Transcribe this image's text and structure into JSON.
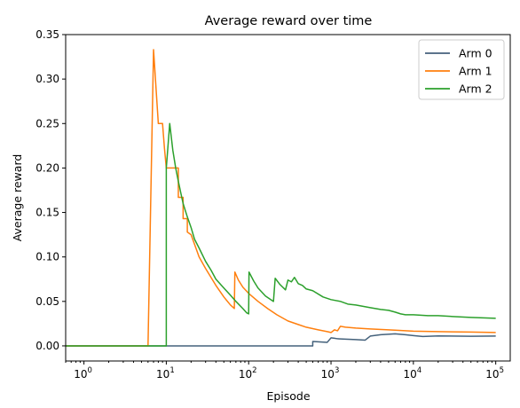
{
  "chart_data": {
    "type": "line",
    "title": "Average reward over time",
    "xlabel": "Episode",
    "ylabel": "Average reward",
    "xscale": "log",
    "xlim": [
      0.6,
      150000
    ],
    "ylim": [
      -0.017,
      0.35
    ],
    "x_ticks": [
      {
        "base": "10",
        "exp": "0"
      },
      {
        "base": "10",
        "exp": "1"
      },
      {
        "base": "10",
        "exp": "2"
      },
      {
        "base": "10",
        "exp": "3"
      },
      {
        "base": "10",
        "exp": "4"
      },
      {
        "base": "10",
        "exp": "5"
      }
    ],
    "y_ticks": [
      "0.00",
      "0.05",
      "0.10",
      "0.15",
      "0.20",
      "0.25",
      "0.30",
      "0.35"
    ],
    "grid": false,
    "legend": "top-right",
    "series": [
      {
        "name": "Arm 0",
        "color": "#44617b",
        "points": [
          [
            0.6,
            0
          ],
          [
            600,
            0
          ],
          [
            600,
            0.005
          ],
          [
            900,
            0.004
          ],
          [
            1000,
            0.009
          ],
          [
            1100,
            0.0085
          ],
          [
            1200,
            0.008
          ],
          [
            1500,
            0.0075
          ],
          [
            2000,
            0.007
          ],
          [
            2600,
            0.0065
          ],
          [
            3000,
            0.011
          ],
          [
            4000,
            0.0125
          ],
          [
            6000,
            0.0135
          ],
          [
            8000,
            0.0125
          ],
          [
            10000,
            0.0115
          ],
          [
            13000,
            0.0105
          ],
          [
            20000,
            0.0112
          ],
          [
            50000,
            0.0108
          ],
          [
            100000,
            0.011
          ]
        ]
      },
      {
        "name": "Arm 1",
        "color": "#ff7f0e",
        "points": [
          [
            0.6,
            0
          ],
          [
            6,
            0
          ],
          [
            7,
            0.333
          ],
          [
            8,
            0.25
          ],
          [
            9,
            0.25
          ],
          [
            9.5,
            0.222
          ],
          [
            10,
            0.2
          ],
          [
            11,
            0.2
          ],
          [
            12,
            0.2
          ],
          [
            13,
            0.2
          ],
          [
            14,
            0.2
          ],
          [
            14,
            0.167
          ],
          [
            15,
            0.167
          ],
          [
            16,
            0.167
          ],
          [
            16,
            0.143
          ],
          [
            18,
            0.143
          ],
          [
            18,
            0.128
          ],
          [
            20,
            0.125
          ],
          [
            25,
            0.1
          ],
          [
            30,
            0.087
          ],
          [
            40,
            0.068
          ],
          [
            50,
            0.055
          ],
          [
            60,
            0.046
          ],
          [
            67,
            0.042
          ],
          [
            68,
            0.083
          ],
          [
            75,
            0.074
          ],
          [
            85,
            0.066
          ],
          [
            100,
            0.059
          ],
          [
            130,
            0.05
          ],
          [
            170,
            0.042
          ],
          [
            220,
            0.035
          ],
          [
            300,
            0.028
          ],
          [
            400,
            0.024
          ],
          [
            500,
            0.021
          ],
          [
            700,
            0.018
          ],
          [
            900,
            0.016
          ],
          [
            1000,
            0.015
          ],
          [
            1100,
            0.018
          ],
          [
            1200,
            0.017
          ],
          [
            1300,
            0.022
          ],
          [
            1500,
            0.021
          ],
          [
            2000,
            0.02
          ],
          [
            3000,
            0.019
          ],
          [
            5000,
            0.018
          ],
          [
            8000,
            0.017
          ],
          [
            10000,
            0.0165
          ],
          [
            20000,
            0.016
          ],
          [
            50000,
            0.0155
          ],
          [
            100000,
            0.015
          ]
        ]
      },
      {
        "name": "Arm 2",
        "color": "#2ca02c",
        "points": [
          [
            0.6,
            0
          ],
          [
            10,
            0
          ],
          [
            10,
            0.2
          ],
          [
            11,
            0.25
          ],
          [
            12,
            0.22
          ],
          [
            13,
            0.2
          ],
          [
            14,
            0.185
          ],
          [
            15,
            0.172
          ],
          [
            16,
            0.16
          ],
          [
            18,
            0.145
          ],
          [
            20,
            0.133
          ],
          [
            22,
            0.12
          ],
          [
            25,
            0.11
          ],
          [
            30,
            0.095
          ],
          [
            35,
            0.085
          ],
          [
            40,
            0.075
          ],
          [
            50,
            0.065
          ],
          [
            60,
            0.057
          ],
          [
            70,
            0.05
          ],
          [
            85,
            0.042
          ],
          [
            95,
            0.037
          ],
          [
            100,
            0.036
          ],
          [
            101,
            0.083
          ],
          [
            115,
            0.073
          ],
          [
            130,
            0.065
          ],
          [
            160,
            0.056
          ],
          [
            200,
            0.05
          ],
          [
            210,
            0.076
          ],
          [
            240,
            0.069
          ],
          [
            280,
            0.063
          ],
          [
            300,
            0.074
          ],
          [
            330,
            0.072
          ],
          [
            360,
            0.077
          ],
          [
            400,
            0.07
          ],
          [
            450,
            0.068
          ],
          [
            500,
            0.064
          ],
          [
            600,
            0.062
          ],
          [
            800,
            0.055
          ],
          [
            1000,
            0.052
          ],
          [
            1300,
            0.05
          ],
          [
            1600,
            0.047
          ],
          [
            2000,
            0.046
          ],
          [
            3000,
            0.043
          ],
          [
            4000,
            0.041
          ],
          [
            5000,
            0.04
          ],
          [
            6000,
            0.038
          ],
          [
            7000,
            0.036
          ],
          [
            8000,
            0.035
          ],
          [
            10000,
            0.035
          ],
          [
            15000,
            0.034
          ],
          [
            20000,
            0.034
          ],
          [
            30000,
            0.033
          ],
          [
            50000,
            0.032
          ],
          [
            100000,
            0.031
          ]
        ]
      }
    ]
  }
}
